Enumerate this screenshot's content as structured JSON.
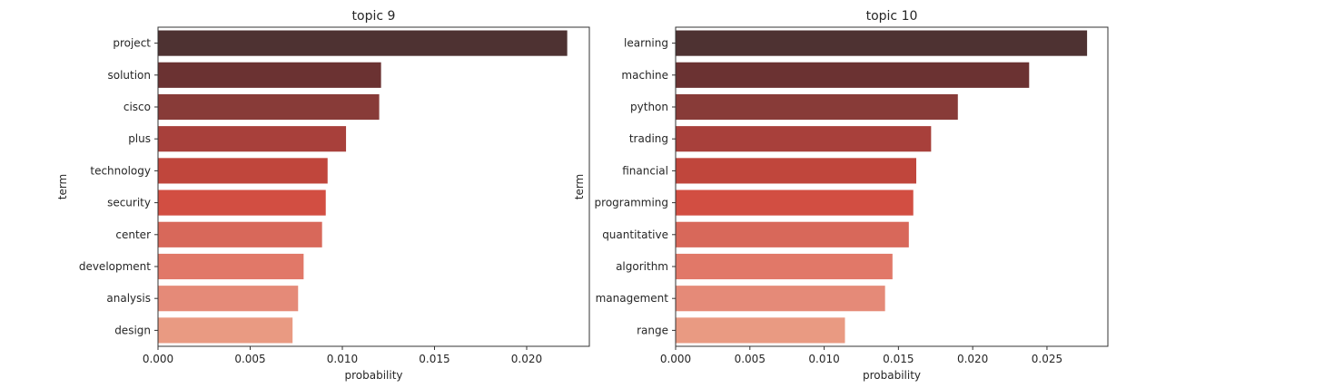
{
  "chart_data": [
    {
      "type": "bar",
      "orientation": "horizontal",
      "title": "topic 9",
      "xlabel": "probability",
      "ylabel": "term",
      "categories": [
        "project",
        "solution",
        "cisco",
        "plus",
        "technology",
        "security",
        "center",
        "development",
        "analysis",
        "design"
      ],
      "values": [
        0.0222,
        0.0121,
        0.012,
        0.0102,
        0.0092,
        0.0091,
        0.0089,
        0.0079,
        0.0076,
        0.0073
      ],
      "xlim": [
        0,
        0.0234
      ],
      "xticks": [
        0.0,
        0.005,
        0.01,
        0.015,
        0.02
      ],
      "xtick_labels": [
        "0.000",
        "0.005",
        "0.010",
        "0.015",
        "0.020"
      ],
      "grid": false,
      "colors": [
        "#4e3232",
        "#6b3232",
        "#883b38",
        "#a8403b",
        "#c0463c",
        "#d24e42",
        "#d8685a",
        "#e17868",
        "#e58a78",
        "#e99a82"
      ]
    },
    {
      "type": "bar",
      "orientation": "horizontal",
      "title": "topic 10",
      "xlabel": "probability",
      "ylabel": "term",
      "categories": [
        "learning",
        "machine",
        "python",
        "trading",
        "financial",
        "programming",
        "quantitative",
        "algorithm",
        "management",
        "range"
      ],
      "values": [
        0.0277,
        0.0238,
        0.019,
        0.0172,
        0.0162,
        0.016,
        0.0157,
        0.0146,
        0.0141,
        0.0114
      ],
      "xlim": [
        0,
        0.0291
      ],
      "xticks": [
        0.0,
        0.005,
        0.01,
        0.015,
        0.02,
        0.025
      ],
      "xtick_labels": [
        "0.000",
        "0.005",
        "0.010",
        "0.015",
        "0.020",
        "0.025"
      ],
      "grid": false,
      "colors": [
        "#4e3232",
        "#6b3232",
        "#883b38",
        "#a8403b",
        "#c0463c",
        "#d24e42",
        "#d8685a",
        "#e17868",
        "#e58a78",
        "#e99a82"
      ]
    }
  ]
}
